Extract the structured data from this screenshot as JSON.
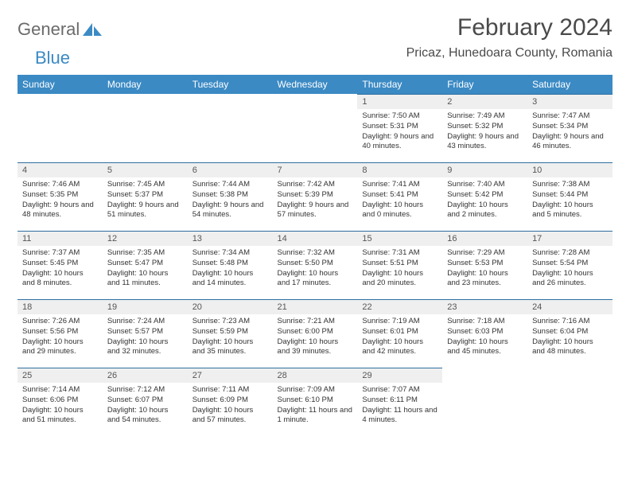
{
  "logo": {
    "word1": "General",
    "word2": "Blue"
  },
  "header": {
    "month_title": "February 2024",
    "location": "Pricaz, Hunedoara County, Romania"
  },
  "colors": {
    "header_bg": "#3b8ac4",
    "header_text": "#ffffff",
    "daynum_bg": "#efefef",
    "row_border": "#2e6fa0",
    "body_text": "#333333",
    "title_text": "#4a4a4a",
    "logo_gray": "#6b6b6b"
  },
  "weekdays": [
    "Sunday",
    "Monday",
    "Tuesday",
    "Wednesday",
    "Thursday",
    "Friday",
    "Saturday"
  ],
  "weeks": [
    [
      null,
      null,
      null,
      null,
      {
        "n": "1",
        "sr": "7:50 AM",
        "ss": "5:31 PM",
        "dl": "9 hours and 40 minutes."
      },
      {
        "n": "2",
        "sr": "7:49 AM",
        "ss": "5:32 PM",
        "dl": "9 hours and 43 minutes."
      },
      {
        "n": "3",
        "sr": "7:47 AM",
        "ss": "5:34 PM",
        "dl": "9 hours and 46 minutes."
      }
    ],
    [
      {
        "n": "4",
        "sr": "7:46 AM",
        "ss": "5:35 PM",
        "dl": "9 hours and 48 minutes."
      },
      {
        "n": "5",
        "sr": "7:45 AM",
        "ss": "5:37 PM",
        "dl": "9 hours and 51 minutes."
      },
      {
        "n": "6",
        "sr": "7:44 AM",
        "ss": "5:38 PM",
        "dl": "9 hours and 54 minutes."
      },
      {
        "n": "7",
        "sr": "7:42 AM",
        "ss": "5:39 PM",
        "dl": "9 hours and 57 minutes."
      },
      {
        "n": "8",
        "sr": "7:41 AM",
        "ss": "5:41 PM",
        "dl": "10 hours and 0 minutes."
      },
      {
        "n": "9",
        "sr": "7:40 AM",
        "ss": "5:42 PM",
        "dl": "10 hours and 2 minutes."
      },
      {
        "n": "10",
        "sr": "7:38 AM",
        "ss": "5:44 PM",
        "dl": "10 hours and 5 minutes."
      }
    ],
    [
      {
        "n": "11",
        "sr": "7:37 AM",
        "ss": "5:45 PM",
        "dl": "10 hours and 8 minutes."
      },
      {
        "n": "12",
        "sr": "7:35 AM",
        "ss": "5:47 PM",
        "dl": "10 hours and 11 minutes."
      },
      {
        "n": "13",
        "sr": "7:34 AM",
        "ss": "5:48 PM",
        "dl": "10 hours and 14 minutes."
      },
      {
        "n": "14",
        "sr": "7:32 AM",
        "ss": "5:50 PM",
        "dl": "10 hours and 17 minutes."
      },
      {
        "n": "15",
        "sr": "7:31 AM",
        "ss": "5:51 PM",
        "dl": "10 hours and 20 minutes."
      },
      {
        "n": "16",
        "sr": "7:29 AM",
        "ss": "5:53 PM",
        "dl": "10 hours and 23 minutes."
      },
      {
        "n": "17",
        "sr": "7:28 AM",
        "ss": "5:54 PM",
        "dl": "10 hours and 26 minutes."
      }
    ],
    [
      {
        "n": "18",
        "sr": "7:26 AM",
        "ss": "5:56 PM",
        "dl": "10 hours and 29 minutes."
      },
      {
        "n": "19",
        "sr": "7:24 AM",
        "ss": "5:57 PM",
        "dl": "10 hours and 32 minutes."
      },
      {
        "n": "20",
        "sr": "7:23 AM",
        "ss": "5:59 PM",
        "dl": "10 hours and 35 minutes."
      },
      {
        "n": "21",
        "sr": "7:21 AM",
        "ss": "6:00 PM",
        "dl": "10 hours and 39 minutes."
      },
      {
        "n": "22",
        "sr": "7:19 AM",
        "ss": "6:01 PM",
        "dl": "10 hours and 42 minutes."
      },
      {
        "n": "23",
        "sr": "7:18 AM",
        "ss": "6:03 PM",
        "dl": "10 hours and 45 minutes."
      },
      {
        "n": "24",
        "sr": "7:16 AM",
        "ss": "6:04 PM",
        "dl": "10 hours and 48 minutes."
      }
    ],
    [
      {
        "n": "25",
        "sr": "7:14 AM",
        "ss": "6:06 PM",
        "dl": "10 hours and 51 minutes."
      },
      {
        "n": "26",
        "sr": "7:12 AM",
        "ss": "6:07 PM",
        "dl": "10 hours and 54 minutes."
      },
      {
        "n": "27",
        "sr": "7:11 AM",
        "ss": "6:09 PM",
        "dl": "10 hours and 57 minutes."
      },
      {
        "n": "28",
        "sr": "7:09 AM",
        "ss": "6:10 PM",
        "dl": "11 hours and 1 minute."
      },
      {
        "n": "29",
        "sr": "7:07 AM",
        "ss": "6:11 PM",
        "dl": "11 hours and 4 minutes."
      },
      null,
      null
    ]
  ],
  "labels": {
    "sunrise": "Sunrise:",
    "sunset": "Sunset:",
    "daylight": "Daylight:"
  }
}
